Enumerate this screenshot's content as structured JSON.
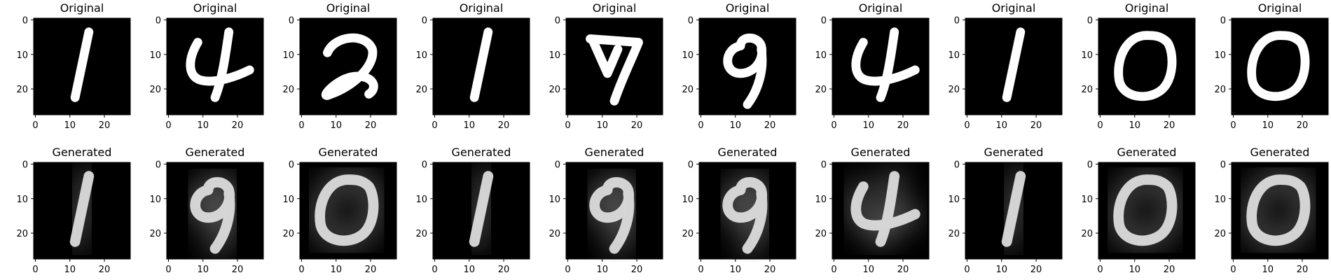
{
  "figure": {
    "row_titles": [
      "Original",
      "Generated"
    ],
    "y_ticks": [
      "0",
      "10",
      "20"
    ],
    "x_ticks": [
      "0",
      "10",
      "20"
    ],
    "panels_per_row": 10,
    "pixel_grid": 28,
    "background_color": "#ffffff",
    "image_background_color": "#000000",
    "stroke_color": "#ffffff",
    "text_color": "#000000"
  },
  "panels": {
    "original": [
      {
        "title": "Original",
        "digit": "1"
      },
      {
        "title": "Original",
        "digit": "4"
      },
      {
        "title": "Original",
        "digit": "2"
      },
      {
        "title": "Original",
        "digit": "1"
      },
      {
        "title": "Original",
        "digit": "7"
      },
      {
        "title": "Original",
        "digit": "9"
      },
      {
        "title": "Original",
        "digit": "4"
      },
      {
        "title": "Original",
        "digit": "1"
      },
      {
        "title": "Original",
        "digit": "0"
      },
      {
        "title": "Original",
        "digit": "0"
      }
    ],
    "generated": [
      {
        "title": "Generated",
        "digit": "1"
      },
      {
        "title": "Generated",
        "digit": "9"
      },
      {
        "title": "Generated",
        "digit": "0"
      },
      {
        "title": "Generated",
        "digit": "1"
      },
      {
        "title": "Generated",
        "digit": "9"
      },
      {
        "title": "Generated",
        "digit": "9"
      },
      {
        "title": "Generated",
        "digit": "4"
      },
      {
        "title": "Generated",
        "digit": "1"
      },
      {
        "title": "Generated",
        "digit": "0"
      },
      {
        "title": "Generated",
        "digit": "0"
      }
    ]
  }
}
